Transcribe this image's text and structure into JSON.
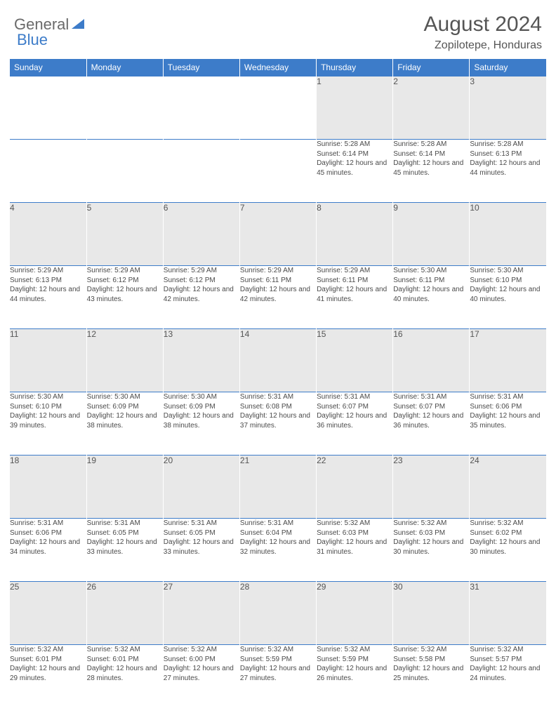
{
  "logo": {
    "text1": "General",
    "text2": "Blue"
  },
  "title": "August 2024",
  "location": "Zopilotepe, Honduras",
  "colors": {
    "header_bg": "#3d7cc9",
    "header_text": "#ffffff",
    "daynum_bg": "#e8e8e8",
    "text": "#4a4a4a",
    "logo_gray": "#6a6a6a",
    "logo_blue": "#3d7cc9"
  },
  "weekdays": [
    "Sunday",
    "Monday",
    "Tuesday",
    "Wednesday",
    "Thursday",
    "Friday",
    "Saturday"
  ],
  "weeks": [
    [
      null,
      null,
      null,
      null,
      {
        "day": "1",
        "sunrise": "5:28 AM",
        "sunset": "6:14 PM",
        "daylight": "12 hours and 45 minutes."
      },
      {
        "day": "2",
        "sunrise": "5:28 AM",
        "sunset": "6:14 PM",
        "daylight": "12 hours and 45 minutes."
      },
      {
        "day": "3",
        "sunrise": "5:28 AM",
        "sunset": "6:13 PM",
        "daylight": "12 hours and 44 minutes."
      }
    ],
    [
      {
        "day": "4",
        "sunrise": "5:29 AM",
        "sunset": "6:13 PM",
        "daylight": "12 hours and 44 minutes."
      },
      {
        "day": "5",
        "sunrise": "5:29 AM",
        "sunset": "6:12 PM",
        "daylight": "12 hours and 43 minutes."
      },
      {
        "day": "6",
        "sunrise": "5:29 AM",
        "sunset": "6:12 PM",
        "daylight": "12 hours and 42 minutes."
      },
      {
        "day": "7",
        "sunrise": "5:29 AM",
        "sunset": "6:11 PM",
        "daylight": "12 hours and 42 minutes."
      },
      {
        "day": "8",
        "sunrise": "5:29 AM",
        "sunset": "6:11 PM",
        "daylight": "12 hours and 41 minutes."
      },
      {
        "day": "9",
        "sunrise": "5:30 AM",
        "sunset": "6:11 PM",
        "daylight": "12 hours and 40 minutes."
      },
      {
        "day": "10",
        "sunrise": "5:30 AM",
        "sunset": "6:10 PM",
        "daylight": "12 hours and 40 minutes."
      }
    ],
    [
      {
        "day": "11",
        "sunrise": "5:30 AM",
        "sunset": "6:10 PM",
        "daylight": "12 hours and 39 minutes."
      },
      {
        "day": "12",
        "sunrise": "5:30 AM",
        "sunset": "6:09 PM",
        "daylight": "12 hours and 38 minutes."
      },
      {
        "day": "13",
        "sunrise": "5:30 AM",
        "sunset": "6:09 PM",
        "daylight": "12 hours and 38 minutes."
      },
      {
        "day": "14",
        "sunrise": "5:31 AM",
        "sunset": "6:08 PM",
        "daylight": "12 hours and 37 minutes."
      },
      {
        "day": "15",
        "sunrise": "5:31 AM",
        "sunset": "6:07 PM",
        "daylight": "12 hours and 36 minutes."
      },
      {
        "day": "16",
        "sunrise": "5:31 AM",
        "sunset": "6:07 PM",
        "daylight": "12 hours and 36 minutes."
      },
      {
        "day": "17",
        "sunrise": "5:31 AM",
        "sunset": "6:06 PM",
        "daylight": "12 hours and 35 minutes."
      }
    ],
    [
      {
        "day": "18",
        "sunrise": "5:31 AM",
        "sunset": "6:06 PM",
        "daylight": "12 hours and 34 minutes."
      },
      {
        "day": "19",
        "sunrise": "5:31 AM",
        "sunset": "6:05 PM",
        "daylight": "12 hours and 33 minutes."
      },
      {
        "day": "20",
        "sunrise": "5:31 AM",
        "sunset": "6:05 PM",
        "daylight": "12 hours and 33 minutes."
      },
      {
        "day": "21",
        "sunrise": "5:31 AM",
        "sunset": "6:04 PM",
        "daylight": "12 hours and 32 minutes."
      },
      {
        "day": "22",
        "sunrise": "5:32 AM",
        "sunset": "6:03 PM",
        "daylight": "12 hours and 31 minutes."
      },
      {
        "day": "23",
        "sunrise": "5:32 AM",
        "sunset": "6:03 PM",
        "daylight": "12 hours and 30 minutes."
      },
      {
        "day": "24",
        "sunrise": "5:32 AM",
        "sunset": "6:02 PM",
        "daylight": "12 hours and 30 minutes."
      }
    ],
    [
      {
        "day": "25",
        "sunrise": "5:32 AM",
        "sunset": "6:01 PM",
        "daylight": "12 hours and 29 minutes."
      },
      {
        "day": "26",
        "sunrise": "5:32 AM",
        "sunset": "6:01 PM",
        "daylight": "12 hours and 28 minutes."
      },
      {
        "day": "27",
        "sunrise": "5:32 AM",
        "sunset": "6:00 PM",
        "daylight": "12 hours and 27 minutes."
      },
      {
        "day": "28",
        "sunrise": "5:32 AM",
        "sunset": "5:59 PM",
        "daylight": "12 hours and 27 minutes."
      },
      {
        "day": "29",
        "sunrise": "5:32 AM",
        "sunset": "5:59 PM",
        "daylight": "12 hours and 26 minutes."
      },
      {
        "day": "30",
        "sunrise": "5:32 AM",
        "sunset": "5:58 PM",
        "daylight": "12 hours and 25 minutes."
      },
      {
        "day": "31",
        "sunrise": "5:32 AM",
        "sunset": "5:57 PM",
        "daylight": "12 hours and 24 minutes."
      }
    ]
  ],
  "labels": {
    "sunrise": "Sunrise:",
    "sunset": "Sunset:",
    "daylight": "Daylight:"
  }
}
